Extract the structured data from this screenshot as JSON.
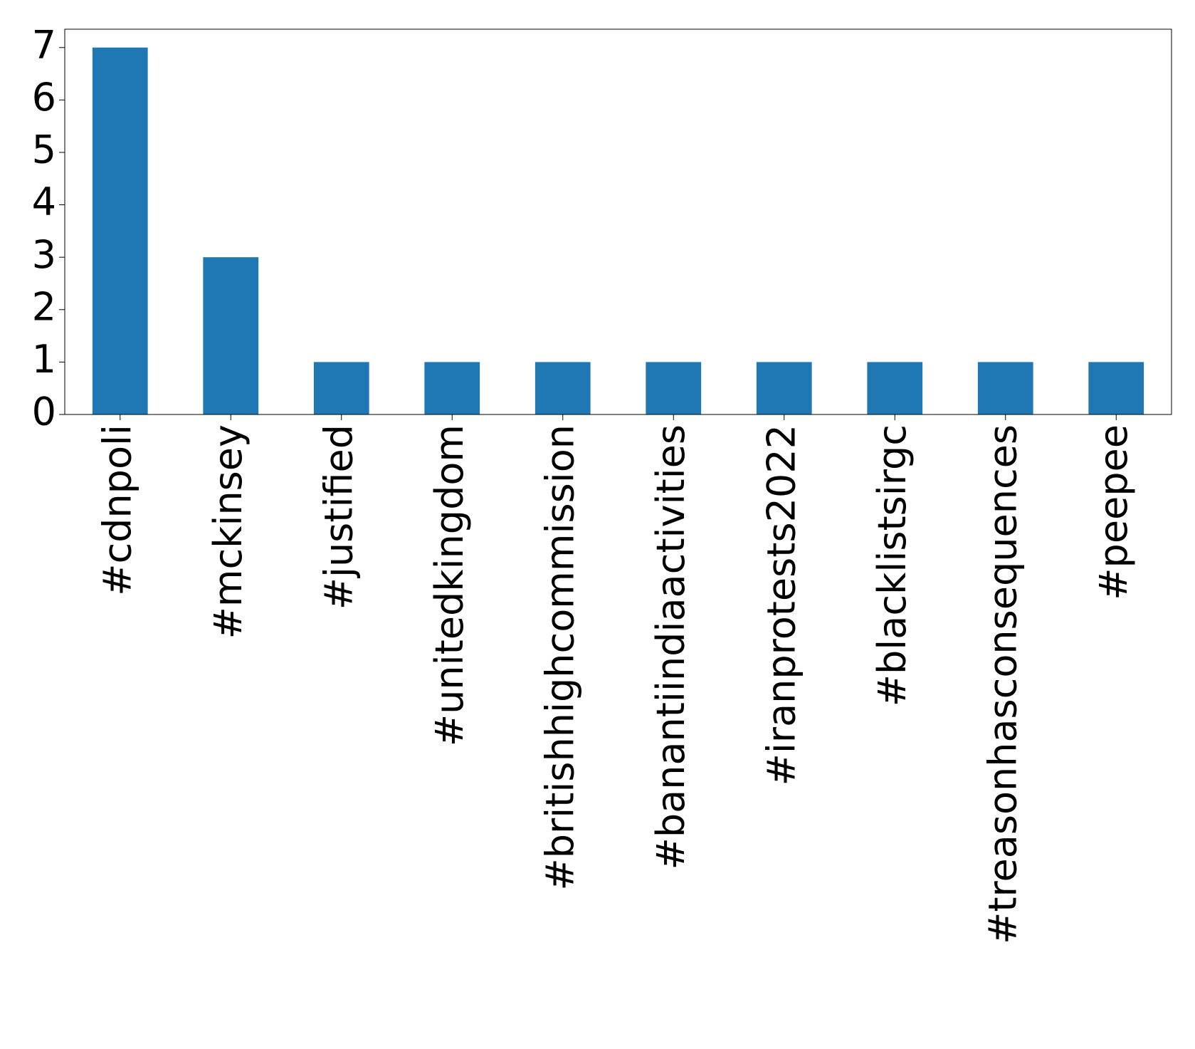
{
  "chart_data": {
    "type": "bar",
    "categories": [
      "#cdnpoli",
      "#mckinsey",
      "#justified",
      "#unitedkingdom",
      "#britishhighcommission",
      "#banantiindiaactivities",
      "#iranprotests2022",
      "#blacklistsirgc",
      "#treasonhasconsequences",
      "#peepee"
    ],
    "values": [
      7,
      3,
      1,
      1,
      1,
      1,
      1,
      1,
      1,
      1
    ],
    "color": "#1f77b4",
    "ylim": [
      0,
      7.35
    ],
    "yticks": [
      0,
      1,
      2,
      3,
      4,
      5,
      6,
      7
    ],
    "grid": false
  }
}
